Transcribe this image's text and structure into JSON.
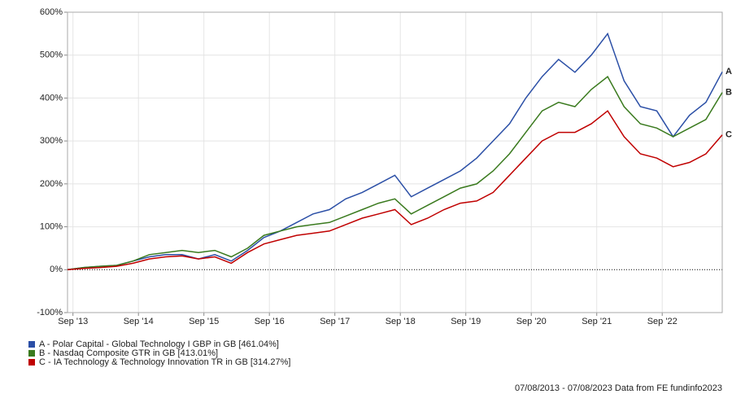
{
  "chart_data": {
    "type": "line",
    "x": [
      "2013-08",
      "2013-11",
      "2014-02",
      "2014-05",
      "2014-08",
      "2014-11",
      "2015-02",
      "2015-05",
      "2015-08",
      "2015-11",
      "2016-02",
      "2016-05",
      "2016-08",
      "2016-11",
      "2017-02",
      "2017-05",
      "2017-08",
      "2017-11",
      "2018-02",
      "2018-05",
      "2018-08",
      "2018-11",
      "2019-02",
      "2019-05",
      "2019-08",
      "2019-11",
      "2020-02",
      "2020-05",
      "2020-08",
      "2020-11",
      "2021-02",
      "2021-05",
      "2021-08",
      "2021-11",
      "2022-02",
      "2022-05",
      "2022-08",
      "2022-11",
      "2023-02",
      "2023-05",
      "2023-08"
    ],
    "xlim": [
      "2013-08",
      "2023-08"
    ],
    "xticks": [
      {
        "value": "2013-09",
        "label": "Sep '13"
      },
      {
        "value": "2014-09",
        "label": "Sep '14"
      },
      {
        "value": "2015-09",
        "label": "Sep '15"
      },
      {
        "value": "2016-09",
        "label": "Sep '16"
      },
      {
        "value": "2017-09",
        "label": "Sep '17"
      },
      {
        "value": "2018-09",
        "label": "Sep '18"
      },
      {
        "value": "2019-09",
        "label": "Sep '19"
      },
      {
        "value": "2020-09",
        "label": "Sep '20"
      },
      {
        "value": "2021-09",
        "label": "Sep '21"
      },
      {
        "value": "2022-09",
        "label": "Sep '22"
      }
    ],
    "ylim": [
      -100,
      600
    ],
    "yticks": [
      {
        "value": -100,
        "label": "-100%"
      },
      {
        "value": 0,
        "label": "0%"
      },
      {
        "value": 100,
        "label": "100%"
      },
      {
        "value": 200,
        "label": "200%"
      },
      {
        "value": 300,
        "label": "300%"
      },
      {
        "value": 400,
        "label": "400%"
      },
      {
        "value": 500,
        "label": "500%"
      },
      {
        "value": 600,
        "label": "600%"
      }
    ],
    "grid": true,
    "series": [
      {
        "name": "A - Polar Capital - Global Technology I GBP in GB [461.04%]",
        "end_label": "A",
        "color": "#2b4fa6",
        "values": [
          0,
          5,
          8,
          10,
          20,
          30,
          35,
          35,
          25,
          35,
          20,
          45,
          75,
          90,
          110,
          130,
          140,
          165,
          180,
          200,
          220,
          170,
          190,
          210,
          230,
          260,
          300,
          340,
          400,
          450,
          490,
          460,
          500,
          550,
          440,
          380,
          370,
          310,
          360,
          390,
          461
        ]
      },
      {
        "name": "B - Nasdaq Composite GTR in GB [413.01%]",
        "end_label": "B",
        "color": "#3a7a1e",
        "values": [
          0,
          5,
          8,
          10,
          20,
          35,
          40,
          45,
          40,
          45,
          30,
          50,
          80,
          90,
          100,
          105,
          110,
          125,
          140,
          155,
          165,
          130,
          150,
          170,
          190,
          200,
          230,
          270,
          320,
          370,
          390,
          380,
          420,
          450,
          380,
          340,
          330,
          310,
          330,
          350,
          413
        ]
      },
      {
        "name": "C - IA Technology & Technology Innovation TR in GB [314.27%]",
        "end_label": "C",
        "color": "#c00000",
        "values": [
          0,
          3,
          5,
          8,
          15,
          25,
          30,
          32,
          25,
          30,
          15,
          40,
          60,
          70,
          80,
          85,
          90,
          105,
          120,
          130,
          140,
          105,
          120,
          140,
          155,
          160,
          180,
          220,
          260,
          300,
          320,
          320,
          340,
          370,
          310,
          270,
          260,
          240,
          250,
          270,
          314
        ]
      }
    ],
    "footer": "07/08/2013 - 07/08/2023 Data from FE fundinfo2023"
  }
}
